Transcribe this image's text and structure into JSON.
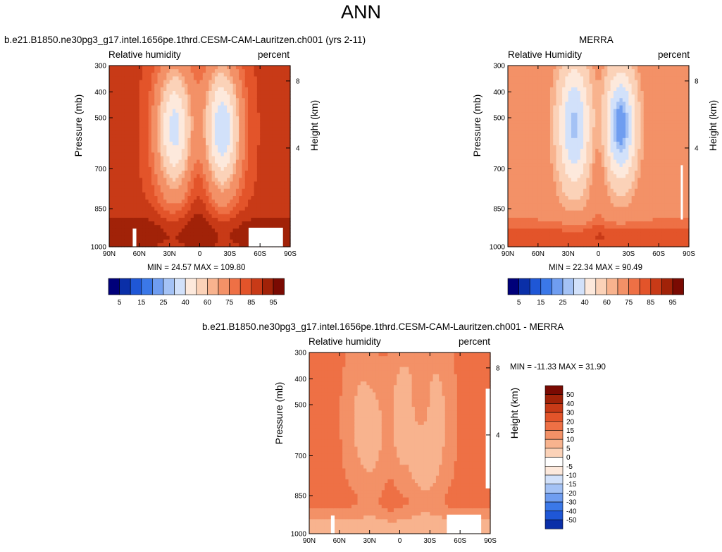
{
  "title": "ANN",
  "colors": {
    "ramp": [
      "#00007a",
      "#0a2fa8",
      "#1f57d6",
      "#3b78e8",
      "#6f9df0",
      "#a4c2f5",
      "#d2e1fa",
      "#fde9dc",
      "#fbd2b8",
      "#f8b38e",
      "#f39167",
      "#ee7045",
      "#e3542a",
      "#c83a17",
      "#a12208",
      "#7a0a02"
    ],
    "white": "#ffffff"
  },
  "chart_data": [
    {
      "type": "heatmap",
      "title": "b.e21.B1850.ne30pg3_g17.intel.1656pe.1thrd.CESM-CAM-Lauritzen.ch001 (yrs 2-11)",
      "left_label": "Relative humidity",
      "right_label": "percent",
      "ylabel": "Pressure (mb)",
      "ylabel_right": "Height (km)",
      "x_ticks": [
        "90N",
        "60N",
        "30N",
        "0",
        "30S",
        "60S",
        "90S"
      ],
      "y_ticks": [
        "300",
        "400",
        "500",
        "700",
        "850",
        "1000"
      ],
      "y_right_ticks": [
        "8",
        "4"
      ],
      "stats": "MIN =  24.57   MAX = 109.80",
      "min": 24.57,
      "max": 109.8,
      "colorbar": {
        "labels": [
          "5",
          "15",
          "25",
          "40",
          "60",
          "75",
          "85",
          "95"
        ]
      },
      "field": "model_rh"
    },
    {
      "type": "heatmap",
      "title": "MERRA",
      "left_label": "Relative Humidity",
      "right_label": "percent",
      "ylabel": "Pressure (mb)",
      "ylabel_right": "Height (km)",
      "x_ticks": [
        "90N",
        "60N",
        "30N",
        "0",
        "30S",
        "60S",
        "90S"
      ],
      "y_ticks": [
        "300",
        "400",
        "500",
        "700",
        "850",
        "1000"
      ],
      "y_right_ticks": [
        "8",
        "4"
      ],
      "stats": "MIN =  22.34   MAX =  90.49",
      "min": 22.34,
      "max": 90.49,
      "colorbar": {
        "labels": [
          "5",
          "15",
          "25",
          "40",
          "60",
          "75",
          "85",
          "95"
        ]
      },
      "field": "merra_rh"
    },
    {
      "type": "heatmap",
      "title": "b.e21.B1850.ne30pg3_g17.intel.1656pe.1thrd.CESM-CAM-Lauritzen.ch001 - MERRA",
      "left_label": "Relative humidity",
      "right_label": "percent",
      "ylabel": "Pressure (mb)",
      "ylabel_right": "Height (km)",
      "x_ticks": [
        "90N",
        "60N",
        "30N",
        "0",
        "30S",
        "60S",
        "90S"
      ],
      "y_ticks": [
        "300",
        "400",
        "500",
        "700",
        "850",
        "1000"
      ],
      "y_right_ticks": [
        "8",
        "4"
      ],
      "stats": "MIN = -11.33   MAX =  31.90",
      "min": -11.33,
      "max": 31.9,
      "colorbar": {
        "labels": [
          "50",
          "40",
          "30",
          "20",
          "15",
          "10",
          "5",
          "0",
          "-5",
          "-10",
          "-15",
          "-20",
          "-30",
          "-40",
          "-50"
        ]
      },
      "field": "difference"
    }
  ]
}
